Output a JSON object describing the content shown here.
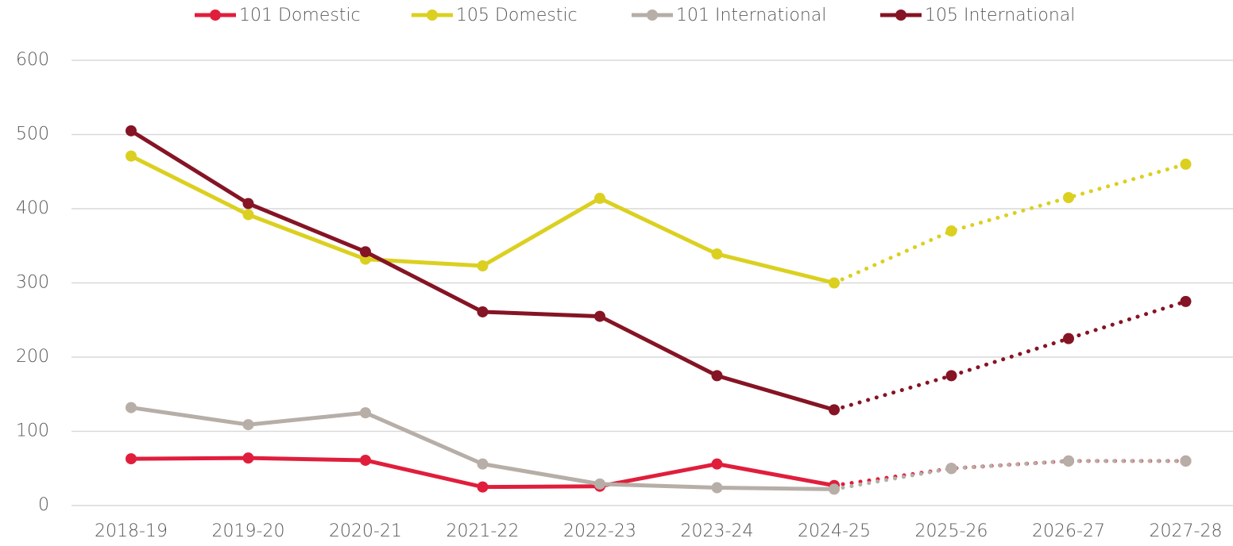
{
  "chart_data": {
    "type": "line",
    "categories": [
      "2018-19",
      "2019-20",
      "2020-21",
      "2021-22",
      "2022-23",
      "2023-24",
      "2024-25",
      "2025-26",
      "2026-27",
      "2027-28"
    ],
    "projection_start_index": 6,
    "series": [
      {
        "name": "101 Domestic",
        "color": "#e01e3c",
        "values": [
          63,
          64,
          61,
          25,
          26,
          56,
          27,
          50,
          60,
          60
        ]
      },
      {
        "name": "105 Domestic",
        "color": "#dbd020",
        "values": [
          471,
          392,
          332,
          323,
          414,
          339,
          300,
          370,
          415,
          460
        ]
      },
      {
        "name": "101 International",
        "color": "#b6aea7",
        "values": [
          132,
          109,
          125,
          56,
          29,
          24,
          22,
          50,
          60,
          60
        ]
      },
      {
        "name": "105 International",
        "color": "#851424",
        "values": [
          505,
          407,
          342,
          261,
          255,
          175,
          129,
          175,
          225,
          275
        ]
      }
    ],
    "ylim": [
      0,
      600
    ],
    "yticks": [
      0,
      100,
      200,
      300,
      400,
      500,
      600
    ],
    "grid": true,
    "legend": "top"
  }
}
